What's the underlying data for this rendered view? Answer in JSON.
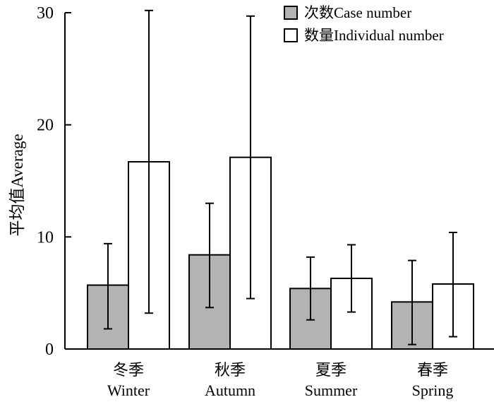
{
  "chart_data": {
    "type": "bar",
    "ylabel": "平均值Average",
    "xlabel": "",
    "ylim": [
      0,
      30
    ],
    "yticks": [
      0,
      10,
      20,
      30
    ],
    "categories": [
      {
        "zh": "冬季",
        "en": "Winter"
      },
      {
        "zh": "秋季",
        "en": "Autumn"
      },
      {
        "zh": "夏季",
        "en": "Summer"
      },
      {
        "zh": "春季",
        "en": "Spring"
      }
    ],
    "series": [
      {
        "name": "次数Case number",
        "color": "#b3b3b3",
        "values": [
          5.7,
          8.4,
          5.4,
          4.2
        ],
        "err_low": [
          1.8,
          3.7,
          2.6,
          0.4
        ],
        "err_high": [
          9.4,
          13.0,
          8.2,
          7.9
        ]
      },
      {
        "name": "数量Individual number",
        "color": "#ffffff",
        "values": [
          16.7,
          17.1,
          6.3,
          5.8
        ],
        "err_low": [
          3.2,
          4.5,
          3.3,
          1.1
        ],
        "err_high": [
          30.2,
          29.7,
          9.3,
          10.4
        ]
      }
    ],
    "legend_position": "top-right",
    "grid": false
  }
}
